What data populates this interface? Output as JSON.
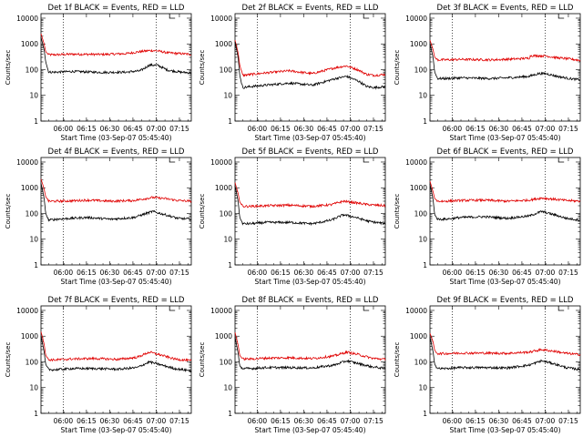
{
  "page": {
    "xlabel": "Start Time (03-Sep-07 05:45:40)",
    "ylabel": "Counts/sec"
  },
  "axes": {
    "yscale": "log",
    "ylim": [
      1,
      15000
    ],
    "yticks": [
      1,
      10,
      100,
      1000,
      10000
    ],
    "ytick_labels": [
      "1",
      "10",
      "100",
      "1000",
      "10000"
    ],
    "xlim_minutes": [
      0,
      97
    ],
    "xticks": [
      "06:00",
      "06:15",
      "06:30",
      "06:45",
      "07:00",
      "07:15"
    ],
    "xtick_minutes": [
      14.33,
      29.33,
      44.33,
      59.33,
      74.33,
      89.33
    ],
    "dotted_lines_minutes": [
      14.33,
      74.33
    ],
    "grid": false
  },
  "colors": {
    "events": "#000000",
    "lld": "#e00000"
  },
  "chart_data": [
    {
      "type": "line",
      "title": "Det 1f BLACK = Events, RED = LLD",
      "series": [
        {
          "name": "BLACK = Events",
          "x": [
            0,
            2,
            3,
            5,
            10,
            20,
            40,
            55,
            64,
            70,
            75,
            82,
            90,
            97
          ],
          "y": [
            1800,
            600,
            200,
            80,
            80,
            85,
            78,
            80,
            90,
            150,
            150,
            95,
            80,
            75
          ]
        },
        {
          "name": "RED = LLD",
          "x": [
            0,
            2,
            3,
            5,
            10,
            20,
            40,
            55,
            64,
            70,
            75,
            82,
            90,
            97
          ],
          "y": [
            2500,
            1000,
            500,
            380,
            380,
            400,
            390,
            420,
            500,
            550,
            540,
            450,
            420,
            390
          ]
        }
      ]
    },
    {
      "type": "line",
      "title": "Det 2f BLACK = Events, RED = LLD",
      "series": [
        {
          "name": "BLACK = Events",
          "x": [
            0,
            2,
            3,
            5,
            10,
            20,
            35,
            50,
            65,
            72,
            80,
            85,
            90,
            97
          ],
          "y": [
            1200,
            300,
            60,
            20,
            22,
            25,
            30,
            25,
            45,
            55,
            35,
            22,
            20,
            22
          ]
        },
        {
          "name": "RED = LLD",
          "x": [
            0,
            2,
            3,
            5,
            10,
            20,
            35,
            50,
            65,
            72,
            80,
            85,
            90,
            97
          ],
          "y": [
            1400,
            450,
            150,
            60,
            65,
            75,
            90,
            70,
            120,
            140,
            95,
            65,
            60,
            65
          ]
        }
      ]
    },
    {
      "type": "line",
      "title": "Det 3f BLACK = Events, RED = LLD",
      "series": [
        {
          "name": "BLACK = Events",
          "x": [
            0,
            2,
            3,
            5,
            10,
            20,
            40,
            55,
            64,
            70,
            75,
            82,
            90,
            97
          ],
          "y": [
            1000,
            300,
            80,
            45,
            45,
            48,
            45,
            50,
            55,
            70,
            70,
            55,
            45,
            40
          ]
        },
        {
          "name": "RED = LLD",
          "x": [
            0,
            2,
            3,
            5,
            10,
            20,
            40,
            55,
            64,
            65,
            75,
            82,
            90,
            97
          ],
          "y": [
            1400,
            600,
            300,
            240,
            240,
            250,
            240,
            260,
            280,
            350,
            340,
            290,
            260,
            230
          ]
        }
      ]
    },
    {
      "type": "line",
      "title": "Det 4f BLACK = Events, RED = LLD",
      "series": [
        {
          "name": "BLACK = Events",
          "x": [
            0,
            2,
            3,
            5,
            10,
            20,
            30,
            45,
            60,
            72,
            80,
            88,
            97
          ],
          "y": [
            1500,
            400,
            100,
            55,
            60,
            65,
            70,
            60,
            70,
            120,
            90,
            65,
            60
          ]
        },
        {
          "name": "RED = LLD",
          "x": [
            0,
            2,
            3,
            5,
            10,
            20,
            30,
            45,
            60,
            72,
            80,
            88,
            97
          ],
          "y": [
            2200,
            900,
            450,
            300,
            300,
            310,
            330,
            300,
            320,
            420,
            380,
            320,
            300
          ]
        }
      ]
    },
    {
      "type": "line",
      "title": "Det 5f BLACK = Events, RED = LLD",
      "series": [
        {
          "name": "BLACK = Events",
          "x": [
            0,
            2,
            3,
            5,
            10,
            20,
            35,
            50,
            62,
            70,
            78,
            86,
            97
          ],
          "y": [
            1200,
            300,
            70,
            40,
            40,
            45,
            45,
            40,
            55,
            90,
            70,
            50,
            40
          ]
        },
        {
          "name": "RED = LLD",
          "x": [
            0,
            2,
            3,
            5,
            10,
            20,
            35,
            50,
            62,
            70,
            78,
            86,
            97
          ],
          "y": [
            1600,
            600,
            280,
            190,
            190,
            200,
            210,
            190,
            220,
            300,
            260,
            220,
            200
          ]
        }
      ]
    },
    {
      "type": "line",
      "title": "Det 6f BLACK = Events, RED = LLD",
      "series": [
        {
          "name": "BLACK = Events",
          "x": [
            0,
            2,
            3,
            5,
            10,
            20,
            35,
            50,
            64,
            72,
            80,
            88,
            97
          ],
          "y": [
            1400,
            350,
            90,
            60,
            60,
            70,
            75,
            65,
            80,
            120,
            90,
            65,
            55
          ]
        },
        {
          "name": "RED = LLD",
          "x": [
            0,
            2,
            3,
            5,
            10,
            20,
            35,
            50,
            64,
            72,
            80,
            88,
            97
          ],
          "y": [
            1800,
            700,
            380,
            300,
            300,
            320,
            330,
            300,
            330,
            400,
            360,
            320,
            300
          ]
        }
      ]
    },
    {
      "type": "line",
      "title": "Det 7f BLACK = Events, RED = LLD",
      "series": [
        {
          "name": "BLACK = Events",
          "x": [
            0,
            2,
            3,
            5,
            10,
            20,
            35,
            50,
            62,
            70,
            78,
            86,
            97
          ],
          "y": [
            1000,
            250,
            80,
            50,
            50,
            55,
            55,
            52,
            60,
            100,
            75,
            55,
            45
          ]
        },
        {
          "name": "RED = LLD",
          "x": [
            0,
            2,
            3,
            5,
            10,
            20,
            35,
            50,
            62,
            70,
            78,
            86,
            97
          ],
          "y": [
            1500,
            500,
            180,
            120,
            120,
            130,
            135,
            125,
            150,
            240,
            180,
            130,
            110
          ]
        }
      ]
    },
    {
      "type": "line",
      "title": "Det 8f BLACK = Events, RED = LLD",
      "series": [
        {
          "name": "BLACK = Events",
          "x": [
            0,
            2,
            3,
            5,
            10,
            20,
            35,
            50,
            64,
            72,
            80,
            88,
            97
          ],
          "y": [
            900,
            220,
            70,
            55,
            55,
            60,
            60,
            58,
            75,
            110,
            85,
            65,
            55
          ]
        },
        {
          "name": "RED = LLD",
          "x": [
            0,
            2,
            3,
            5,
            10,
            20,
            35,
            50,
            64,
            72,
            80,
            88,
            97
          ],
          "y": [
            1400,
            450,
            180,
            130,
            130,
            140,
            145,
            135,
            170,
            240,
            190,
            140,
            125
          ]
        }
      ]
    },
    {
      "type": "line",
      "title": "Det 9f BLACK = Events, RED = LLD",
      "series": [
        {
          "name": "BLACK = Events",
          "x": [
            0,
            2,
            3,
            5,
            10,
            20,
            35,
            50,
            64,
            72,
            80,
            88,
            97
          ],
          "y": [
            900,
            250,
            80,
            55,
            55,
            60,
            60,
            58,
            75,
            110,
            85,
            60,
            50
          ]
        },
        {
          "name": "RED = LLD",
          "x": [
            0,
            2,
            3,
            5,
            10,
            20,
            35,
            50,
            64,
            72,
            80,
            88,
            97
          ],
          "y": [
            1300,
            600,
            280,
            210,
            210,
            220,
            220,
            215,
            240,
            300,
            260,
            215,
            190
          ]
        }
      ]
    }
  ]
}
